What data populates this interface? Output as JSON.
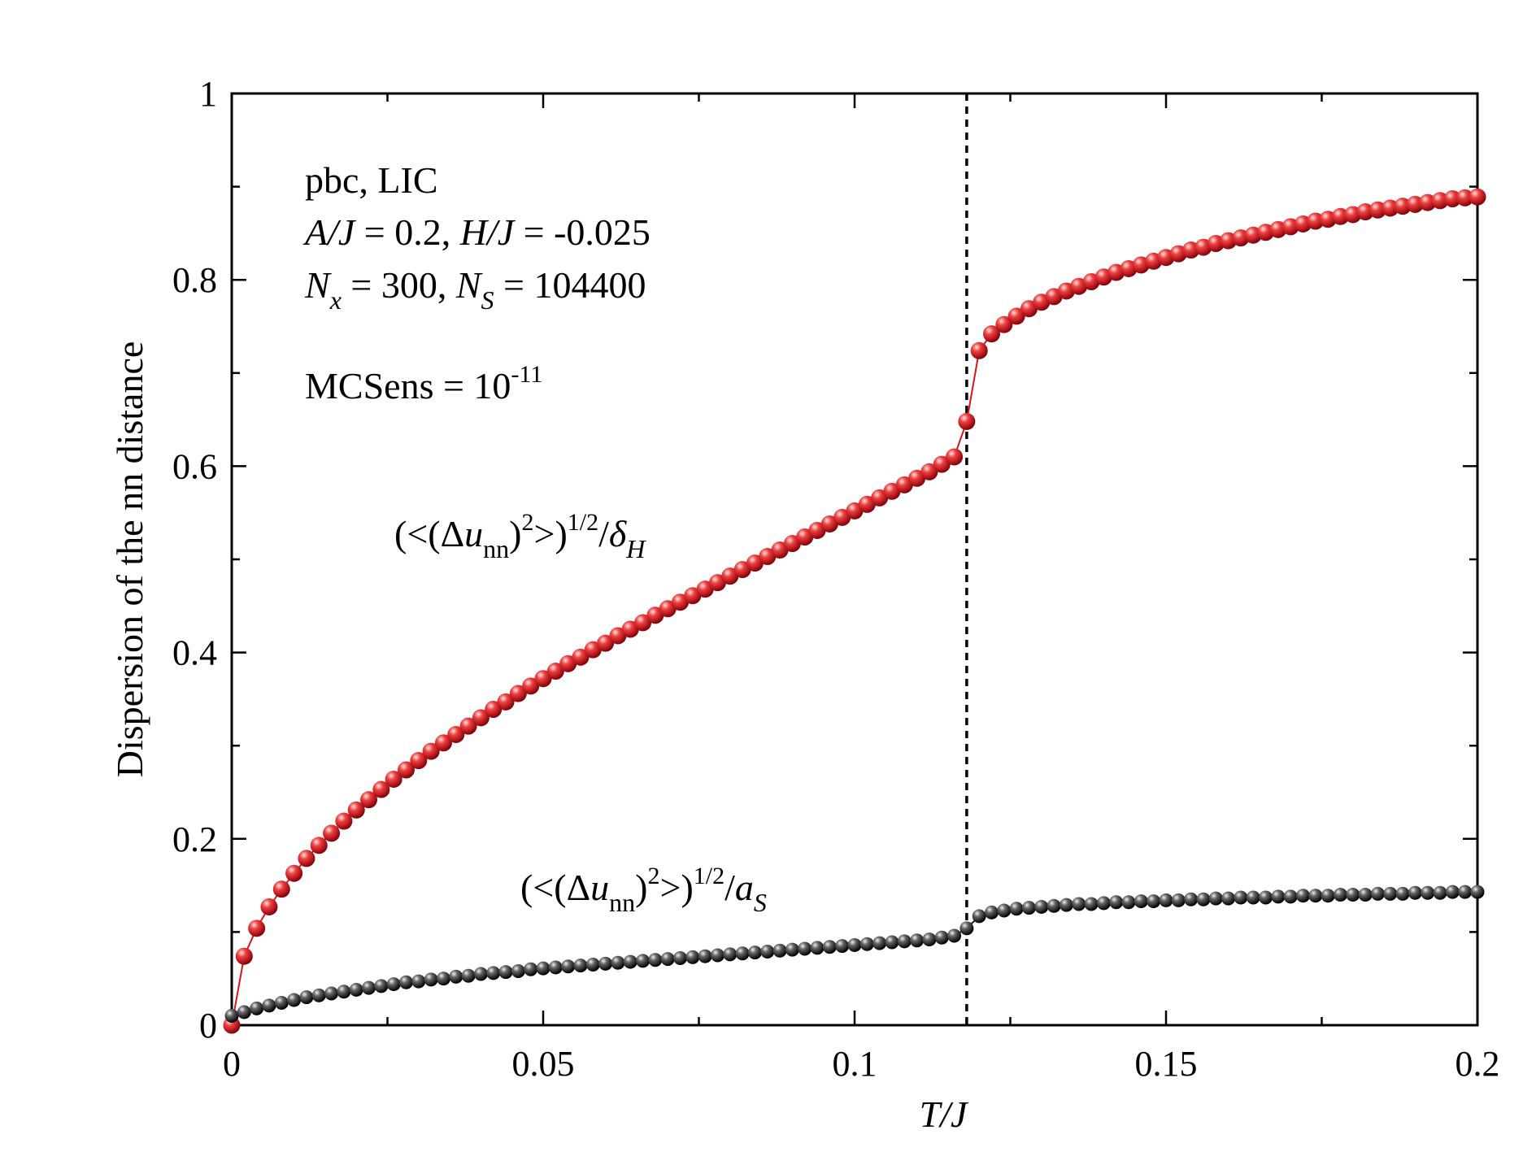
{
  "chart_data": {
    "type": "line",
    "xlabel": "T/J",
    "ylabel": "Dispersion of the nn distance",
    "xlim": [
      0,
      0.2
    ],
    "ylim": [
      0,
      1
    ],
    "x_ticks": [
      0,
      0.05,
      0.1,
      0.15,
      0.2
    ],
    "x_tick_labels": [
      "0",
      "0.05",
      "0.1",
      "0.15",
      "0.2"
    ],
    "y_ticks": [
      0,
      0.2,
      0.4,
      0.6,
      0.8,
      1
    ],
    "y_tick_labels": [
      "0",
      "0.2",
      "0.4",
      "0.6",
      "0.8",
      "1"
    ],
    "vline_x": 0.118,
    "annotations": {
      "line1": "pbc, LIC",
      "line2_A": "A/J",
      "line2_A_val": " = 0.2,  ",
      "line2_H": "H/J",
      "line2_H_val": " = -0.025",
      "line3_N": "N",
      "line3_x": "x",
      "line3_mid": " = 300, ",
      "line3_S": "S",
      "line3_end": " = 104400",
      "line4_main": "MCSens = 10",
      "line4_exp": "-11",
      "label_red_pre": "(<(Δ",
      "label_red_u": "u",
      "label_red_nn": "nn",
      "label_red_paren": ")",
      "label_red_two": "2",
      "label_red_close": ">)",
      "label_red_half": "1/2",
      "label_red_slash": "/",
      "label_red_delta": "δ",
      "label_red_sub": "H",
      "label_black_pre": "(<(Δ",
      "label_black_u": "u",
      "label_black_nn": "nn",
      "label_black_paren": ")",
      "label_black_two": "2",
      "label_black_close": ">)",
      "label_black_half": "1/2",
      "label_black_slash": "/",
      "label_black_a": "a",
      "label_black_sub": "S"
    },
    "series": [
      {
        "name": "(<(Δu_nn)^2>)^1/2/δ_H",
        "color": "#d7141c",
        "x": [
          0,
          0.002,
          0.004,
          0.006,
          0.008,
          0.01,
          0.012,
          0.014,
          0.016,
          0.018,
          0.02,
          0.022,
          0.024,
          0.026,
          0.028,
          0.03,
          0.032,
          0.034,
          0.036,
          0.038,
          0.04,
          0.042,
          0.044,
          0.046,
          0.048,
          0.05,
          0.052,
          0.054,
          0.056,
          0.058,
          0.06,
          0.062,
          0.064,
          0.066,
          0.068,
          0.07,
          0.072,
          0.074,
          0.076,
          0.078,
          0.08,
          0.082,
          0.084,
          0.086,
          0.088,
          0.09,
          0.092,
          0.094,
          0.096,
          0.098,
          0.1,
          0.102,
          0.104,
          0.106,
          0.108,
          0.11,
          0.112,
          0.114,
          0.116,
          0.118,
          0.12,
          0.122,
          0.124,
          0.126,
          0.128,
          0.13,
          0.132,
          0.134,
          0.136,
          0.138,
          0.14,
          0.142,
          0.144,
          0.146,
          0.148,
          0.15,
          0.152,
          0.154,
          0.156,
          0.158,
          0.16,
          0.162,
          0.164,
          0.166,
          0.168,
          0.17,
          0.172,
          0.174,
          0.176,
          0.178,
          0.18,
          0.182,
          0.184,
          0.186,
          0.188,
          0.19,
          0.192,
          0.194,
          0.196,
          0.198,
          0.2
        ],
        "values": [
          0.0,
          0.074,
          0.104,
          0.127,
          0.146,
          0.163,
          0.179,
          0.193,
          0.206,
          0.219,
          0.231,
          0.242,
          0.253,
          0.264,
          0.274,
          0.284,
          0.294,
          0.303,
          0.312,
          0.321,
          0.33,
          0.339,
          0.347,
          0.356,
          0.364,
          0.372,
          0.38,
          0.388,
          0.395,
          0.403,
          0.41,
          0.418,
          0.425,
          0.432,
          0.44,
          0.447,
          0.454,
          0.461,
          0.468,
          0.475,
          0.482,
          0.489,
          0.496,
          0.503,
          0.51,
          0.517,
          0.524,
          0.531,
          0.538,
          0.545,
          0.552,
          0.559,
          0.566,
          0.573,
          0.58,
          0.587,
          0.594,
          0.602,
          0.61,
          0.648,
          0.724,
          0.742,
          0.752,
          0.761,
          0.769,
          0.776,
          0.782,
          0.788,
          0.793,
          0.798,
          0.803,
          0.808,
          0.812,
          0.816,
          0.82,
          0.824,
          0.828,
          0.832,
          0.835,
          0.839,
          0.842,
          0.845,
          0.848,
          0.851,
          0.854,
          0.857,
          0.86,
          0.863,
          0.865,
          0.868,
          0.87,
          0.873,
          0.875,
          0.877,
          0.879,
          0.881,
          0.883,
          0.885,
          0.887,
          0.888,
          0.889
        ]
      },
      {
        "name": "(<(Δu_nn)^2>)^1/2/a_S",
        "color": "#1a1a1a",
        "x": [
          0,
          0.002,
          0.004,
          0.006,
          0.008,
          0.01,
          0.012,
          0.014,
          0.016,
          0.018,
          0.02,
          0.022,
          0.024,
          0.026,
          0.028,
          0.03,
          0.032,
          0.034,
          0.036,
          0.038,
          0.04,
          0.042,
          0.044,
          0.046,
          0.048,
          0.05,
          0.052,
          0.054,
          0.056,
          0.058,
          0.06,
          0.062,
          0.064,
          0.066,
          0.068,
          0.07,
          0.072,
          0.074,
          0.076,
          0.078,
          0.08,
          0.082,
          0.084,
          0.086,
          0.088,
          0.09,
          0.092,
          0.094,
          0.096,
          0.098,
          0.1,
          0.102,
          0.104,
          0.106,
          0.108,
          0.11,
          0.112,
          0.114,
          0.116,
          0.118,
          0.12,
          0.122,
          0.124,
          0.126,
          0.128,
          0.13,
          0.132,
          0.134,
          0.136,
          0.138,
          0.14,
          0.142,
          0.144,
          0.146,
          0.148,
          0.15,
          0.152,
          0.154,
          0.156,
          0.158,
          0.16,
          0.162,
          0.164,
          0.166,
          0.168,
          0.17,
          0.172,
          0.174,
          0.176,
          0.178,
          0.18,
          0.182,
          0.184,
          0.186,
          0.188,
          0.19,
          0.192,
          0.194,
          0.196,
          0.198,
          0.2
        ],
        "values": [
          0.01,
          0.014,
          0.018,
          0.021,
          0.024,
          0.027,
          0.03,
          0.032,
          0.034,
          0.036,
          0.038,
          0.04,
          0.042,
          0.044,
          0.046,
          0.047,
          0.049,
          0.05,
          0.052,
          0.053,
          0.055,
          0.056,
          0.057,
          0.058,
          0.06,
          0.061,
          0.062,
          0.063,
          0.064,
          0.065,
          0.066,
          0.067,
          0.068,
          0.069,
          0.07,
          0.071,
          0.072,
          0.073,
          0.074,
          0.075,
          0.076,
          0.077,
          0.078,
          0.079,
          0.08,
          0.081,
          0.082,
          0.083,
          0.084,
          0.085,
          0.086,
          0.087,
          0.088,
          0.089,
          0.09,
          0.091,
          0.092,
          0.094,
          0.096,
          0.104,
          0.117,
          0.121,
          0.123,
          0.125,
          0.126,
          0.127,
          0.128,
          0.129,
          0.13,
          0.13,
          0.131,
          0.132,
          0.132,
          0.133,
          0.133,
          0.134,
          0.134,
          0.135,
          0.135,
          0.136,
          0.136,
          0.137,
          0.137,
          0.137,
          0.138,
          0.138,
          0.139,
          0.139,
          0.139,
          0.14,
          0.14,
          0.14,
          0.141,
          0.141,
          0.141,
          0.142,
          0.142,
          0.142,
          0.143,
          0.143,
          0.143
        ]
      }
    ]
  }
}
